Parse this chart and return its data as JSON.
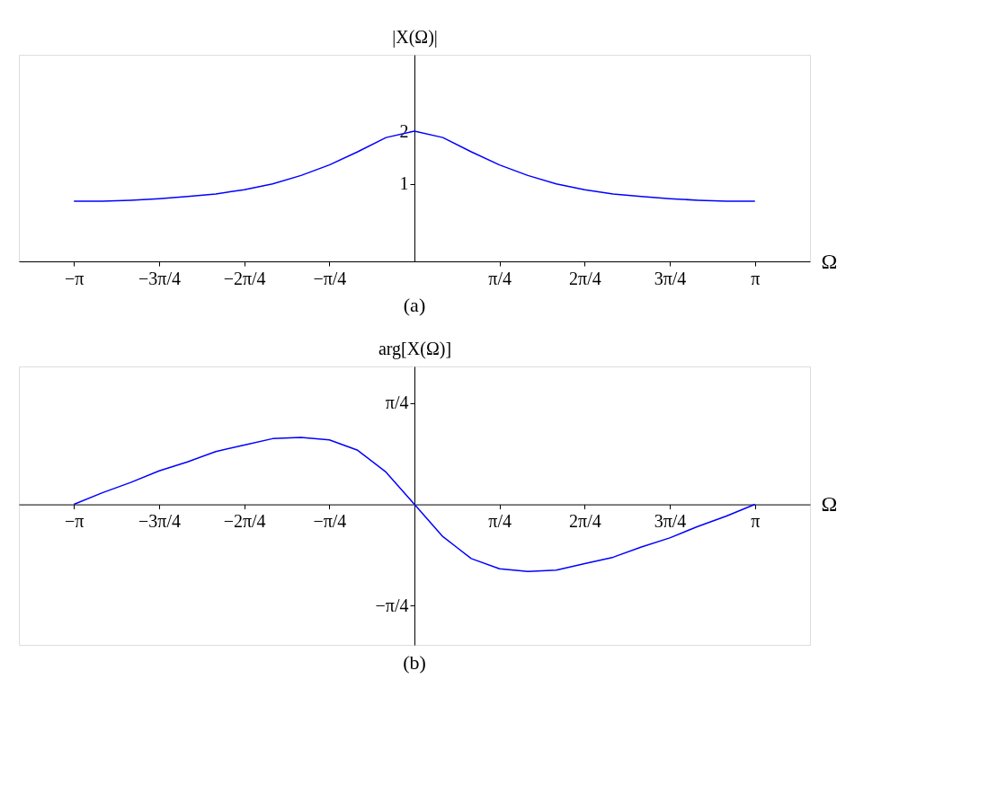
{
  "chart_data": [
    {
      "type": "line",
      "ylabel": "|X(Ω)|",
      "xlabel": "Ω",
      "annotations": [
        "(a)"
      ],
      "x": [
        -3.142,
        -2.88,
        -2.618,
        -2.356,
        -2.094,
        -1.833,
        -1.571,
        -1.309,
        -1.047,
        -0.785,
        -0.524,
        -0.262,
        0,
        0.262,
        0.524,
        0.785,
        1.047,
        1.309,
        1.571,
        1.833,
        2.094,
        2.356,
        2.618,
        2.88,
        3.142
      ],
      "series": [
        {
          "color": "#0000ff",
          "values": [
            0.67,
            0.67,
            0.69,
            0.72,
            0.76,
            0.81,
            0.89,
            1.0,
            1.16,
            1.36,
            1.61,
            1.88,
            2.0,
            1.88,
            1.61,
            1.36,
            1.16,
            1.0,
            0.89,
            0.81,
            0.76,
            0.72,
            0.69,
            0.67,
            0.67
          ]
        }
      ],
      "xlim": [
        -3.65,
        3.65
      ],
      "ylim": [
        -0.47,
        3.45
      ],
      "xticks": [
        {
          "value": -3.142,
          "label": "−π"
        },
        {
          "value": -2.356,
          "label": "−3π/4"
        },
        {
          "value": -1.571,
          "label": "−2π/4"
        },
        {
          "value": -0.785,
          "label": "−π/4"
        },
        {
          "value": 0.785,
          "label": "π/4"
        },
        {
          "value": 1.571,
          "label": "2π/4"
        },
        {
          "value": 2.356,
          "label": "3π/4"
        },
        {
          "value": 3.142,
          "label": "π"
        }
      ],
      "yticks": [
        1,
        2
      ],
      "grid": false
    },
    {
      "type": "line",
      "ylabel": "arg[X(Ω)]",
      "xlabel": "Ω",
      "annotations": [
        "(b)"
      ],
      "x": [
        -3.142,
        -2.88,
        -2.618,
        -2.356,
        -2.094,
        -1.833,
        -1.571,
        -1.309,
        -1.047,
        -0.785,
        -0.524,
        -0.262,
        0,
        0.262,
        0.524,
        0.785,
        1.047,
        1.309,
        1.571,
        1.833,
        2.094,
        2.356,
        2.618,
        2.88,
        3.142
      ],
      "series": [
        {
          "color": "#0000ff",
          "values": [
            0,
            0.09,
            0.17,
            0.26,
            0.33,
            0.41,
            0.46,
            0.51,
            0.52,
            0.5,
            0.42,
            0.25,
            0,
            -0.25,
            -0.42,
            -0.5,
            -0.52,
            -0.51,
            -0.46,
            -0.41,
            -0.33,
            -0.26,
            -0.17,
            -0.09,
            0
          ]
        }
      ],
      "xlim": [
        -3.65,
        3.65
      ],
      "ylim": [
        -1.09,
        1.07
      ],
      "xticks": [
        {
          "value": -3.142,
          "label": "−π"
        },
        {
          "value": -2.356,
          "label": "−3π/4"
        },
        {
          "value": -1.571,
          "label": "−2π/4"
        },
        {
          "value": -0.785,
          "label": "−π/4"
        },
        {
          "value": 0.785,
          "label": "π/4"
        },
        {
          "value": 1.571,
          "label": "2π/4"
        },
        {
          "value": 2.356,
          "label": "3π/4"
        },
        {
          "value": 3.142,
          "label": "π"
        }
      ],
      "yticks": [
        {
          "value": 0.785,
          "label": "π/4"
        },
        {
          "value": -0.785,
          "label": "−π/4"
        }
      ],
      "grid": false
    }
  ]
}
